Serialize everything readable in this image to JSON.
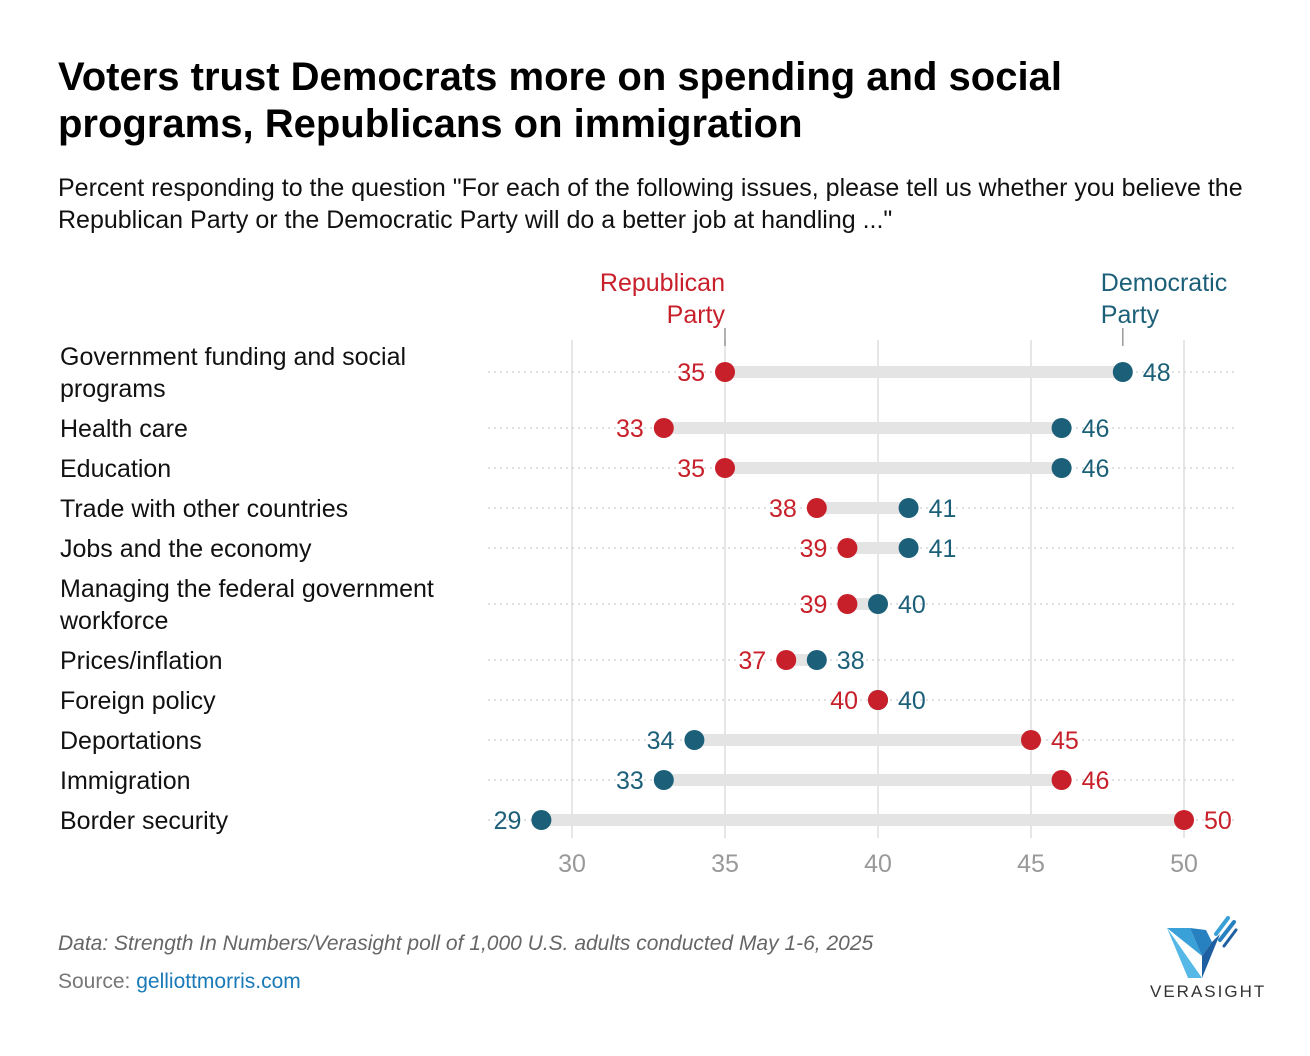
{
  "title": "Voters trust Democrats more on spending and social programs, Republicans on immigration",
  "subtitle": "Percent responding to the question \"For each of the following issues, please tell us whether you believe the Republican Party or the Democratic Party will do a better job at handling ...\"",
  "footer": {
    "data_note": "Data: Strength In Numbers/Verasight poll of 1,000 U.S. adults conducted May 1-6, 2025",
    "source_label": "Source:",
    "source_link": "gelliottmorris.com"
  },
  "logo": {
    "text": "VERASIGHT",
    "icon": "verasight-logo-icon"
  },
  "colors": {
    "republican": "#c8202a",
    "democratic": "#1c5f78",
    "connector": "#e4e4e4",
    "grid": "#e6e6e6",
    "axis_text": "#999999"
  },
  "chart_data": {
    "type": "dumbbell",
    "xlim": [
      28,
      51
    ],
    "xticks": [
      "30",
      "35",
      "40",
      "45",
      "50"
    ],
    "grid": true,
    "legend": {
      "republican": [
        "Republican",
        "Party"
      ],
      "democratic": [
        "Democratic",
        "Party"
      ]
    },
    "categories": [
      [
        "Government funding and social",
        "programs"
      ],
      [
        "Health care"
      ],
      [
        "Education"
      ],
      [
        "Trade with other countries"
      ],
      [
        "Jobs and the economy"
      ],
      [
        "Managing the federal government",
        "workforce"
      ],
      [
        "Prices/inflation"
      ],
      [
        "Foreign policy"
      ],
      [
        "Deportations"
      ],
      [
        "Immigration"
      ],
      [
        "Border security"
      ]
    ],
    "series": [
      {
        "name": "Republican Party",
        "values": [
          35,
          33,
          35,
          38,
          39,
          39,
          37,
          40,
          45,
          46,
          50
        ]
      },
      {
        "name": "Democratic Party",
        "values": [
          48,
          46,
          46,
          41,
          41,
          40,
          38,
          40,
          34,
          33,
          29
        ]
      }
    ]
  }
}
